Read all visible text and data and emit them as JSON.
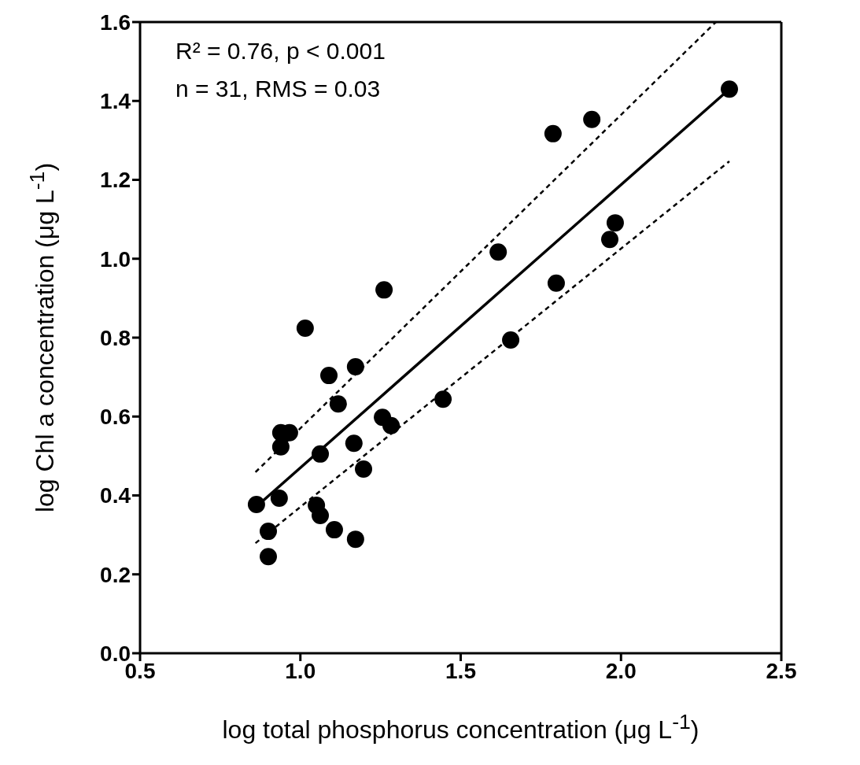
{
  "chart_data": {
    "type": "scatter",
    "xlabel": "log total phosphorus concentration (μg L$^{-1}$)",
    "ylabel": "log Chl a concentration (μg L$^{-1}$)",
    "xlim": [
      0.5,
      2.5
    ],
    "ylim": [
      0,
      1.6
    ],
    "xticks": [
      0.5,
      {
        "value": 1,
        "label": "1.0"
      },
      1.5,
      {
        "value": 2,
        "label": "2.0"
      },
      2.5
    ],
    "yticks": [
      {
        "value": 0,
        "label": "0.0"
      },
      0.2,
      0.4,
      0.6,
      0.8,
      {
        "value": 1,
        "label": "1.0"
      },
      1.2,
      1.4,
      1.6
    ],
    "grid": false,
    "legend": false,
    "annotations": [
      "R² = 0.76, p < 0.001",
      "n = 31, RMS = 0.03"
    ],
    "series": [
      {
        "color": "#000000",
        "marker": "circle",
        "x": [
          0.863,
          0.9,
          0.9,
          0.934,
          0.939,
          0.966,
          0.939,
          1.015,
          1.062,
          1.05,
          1.062,
          1.089,
          1.118,
          1.106,
          1.172,
          1.167,
          1.172,
          1.197,
          1.261,
          1.256,
          1.283,
          1.445,
          1.617,
          1.656,
          1.788,
          1.798,
          1.909,
          1.982,
          1.965,
          2.338
        ],
        "values": [
          0.377,
          0.309,
          0.245,
          0.393,
          0.559,
          0.559,
          0.523,
          0.824,
          0.505,
          0.375,
          0.349,
          0.704,
          0.632,
          0.313,
          0.726,
          0.532,
          0.289,
          0.467,
          0.921,
          0.598,
          0.577,
          0.644,
          1.017,
          0.794,
          1.317,
          0.938,
          1.353,
          1.091,
          1.049,
          1.43
        ]
      },
      {
        "type": "line",
        "color": "#000000",
        "line_style": "solid",
        "x": [
          0.873,
          2.338
        ],
        "values": [
          0.379,
          1.43
        ]
      },
      {
        "type": "line",
        "color": "#000000",
        "line_style": "dashed",
        "x": [
          0.86,
          2.296
        ],
        "values": [
          0.459,
          1.6
        ]
      },
      {
        "type": "line",
        "color": "#000000",
        "line_style": "dashed",
        "x": [
          0.86,
          2.338
        ],
        "values": [
          0.279,
          1.247
        ]
      }
    ]
  }
}
